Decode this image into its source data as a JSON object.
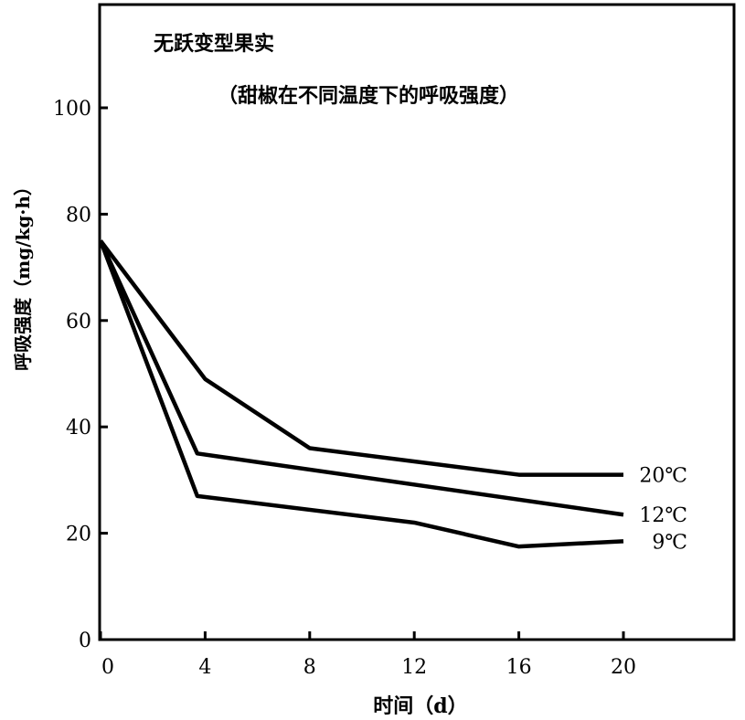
{
  "chart_data": {
    "type": "line",
    "title": "无跃变型果实",
    "subtitle": "（甜椒在不同温度下的呼吸强度）",
    "xlabel": "时间（d）",
    "ylabel": "呼吸强度（mg/kg·h）",
    "xlim": [
      0,
      24
    ],
    "ylim": [
      0,
      120
    ],
    "x_ticks": [
      "0",
      "4",
      "8",
      "12",
      "16",
      "20"
    ],
    "y_ticks": [
      "0",
      "20",
      "40",
      "60",
      "80",
      "100"
    ],
    "grid": false,
    "series": [
      {
        "name": "20℃",
        "x": [
          0,
          4,
          8,
          16,
          20
        ],
        "y": [
          75,
          49,
          36,
          31,
          31
        ]
      },
      {
        "name": "12℃",
        "x": [
          0,
          3.7,
          20
        ],
        "y": [
          75,
          35,
          23.5
        ]
      },
      {
        "name": "9℃",
        "x": [
          0,
          3.7,
          12,
          16,
          20
        ],
        "y": [
          75,
          27,
          22,
          17.5,
          18.5
        ]
      }
    ]
  }
}
